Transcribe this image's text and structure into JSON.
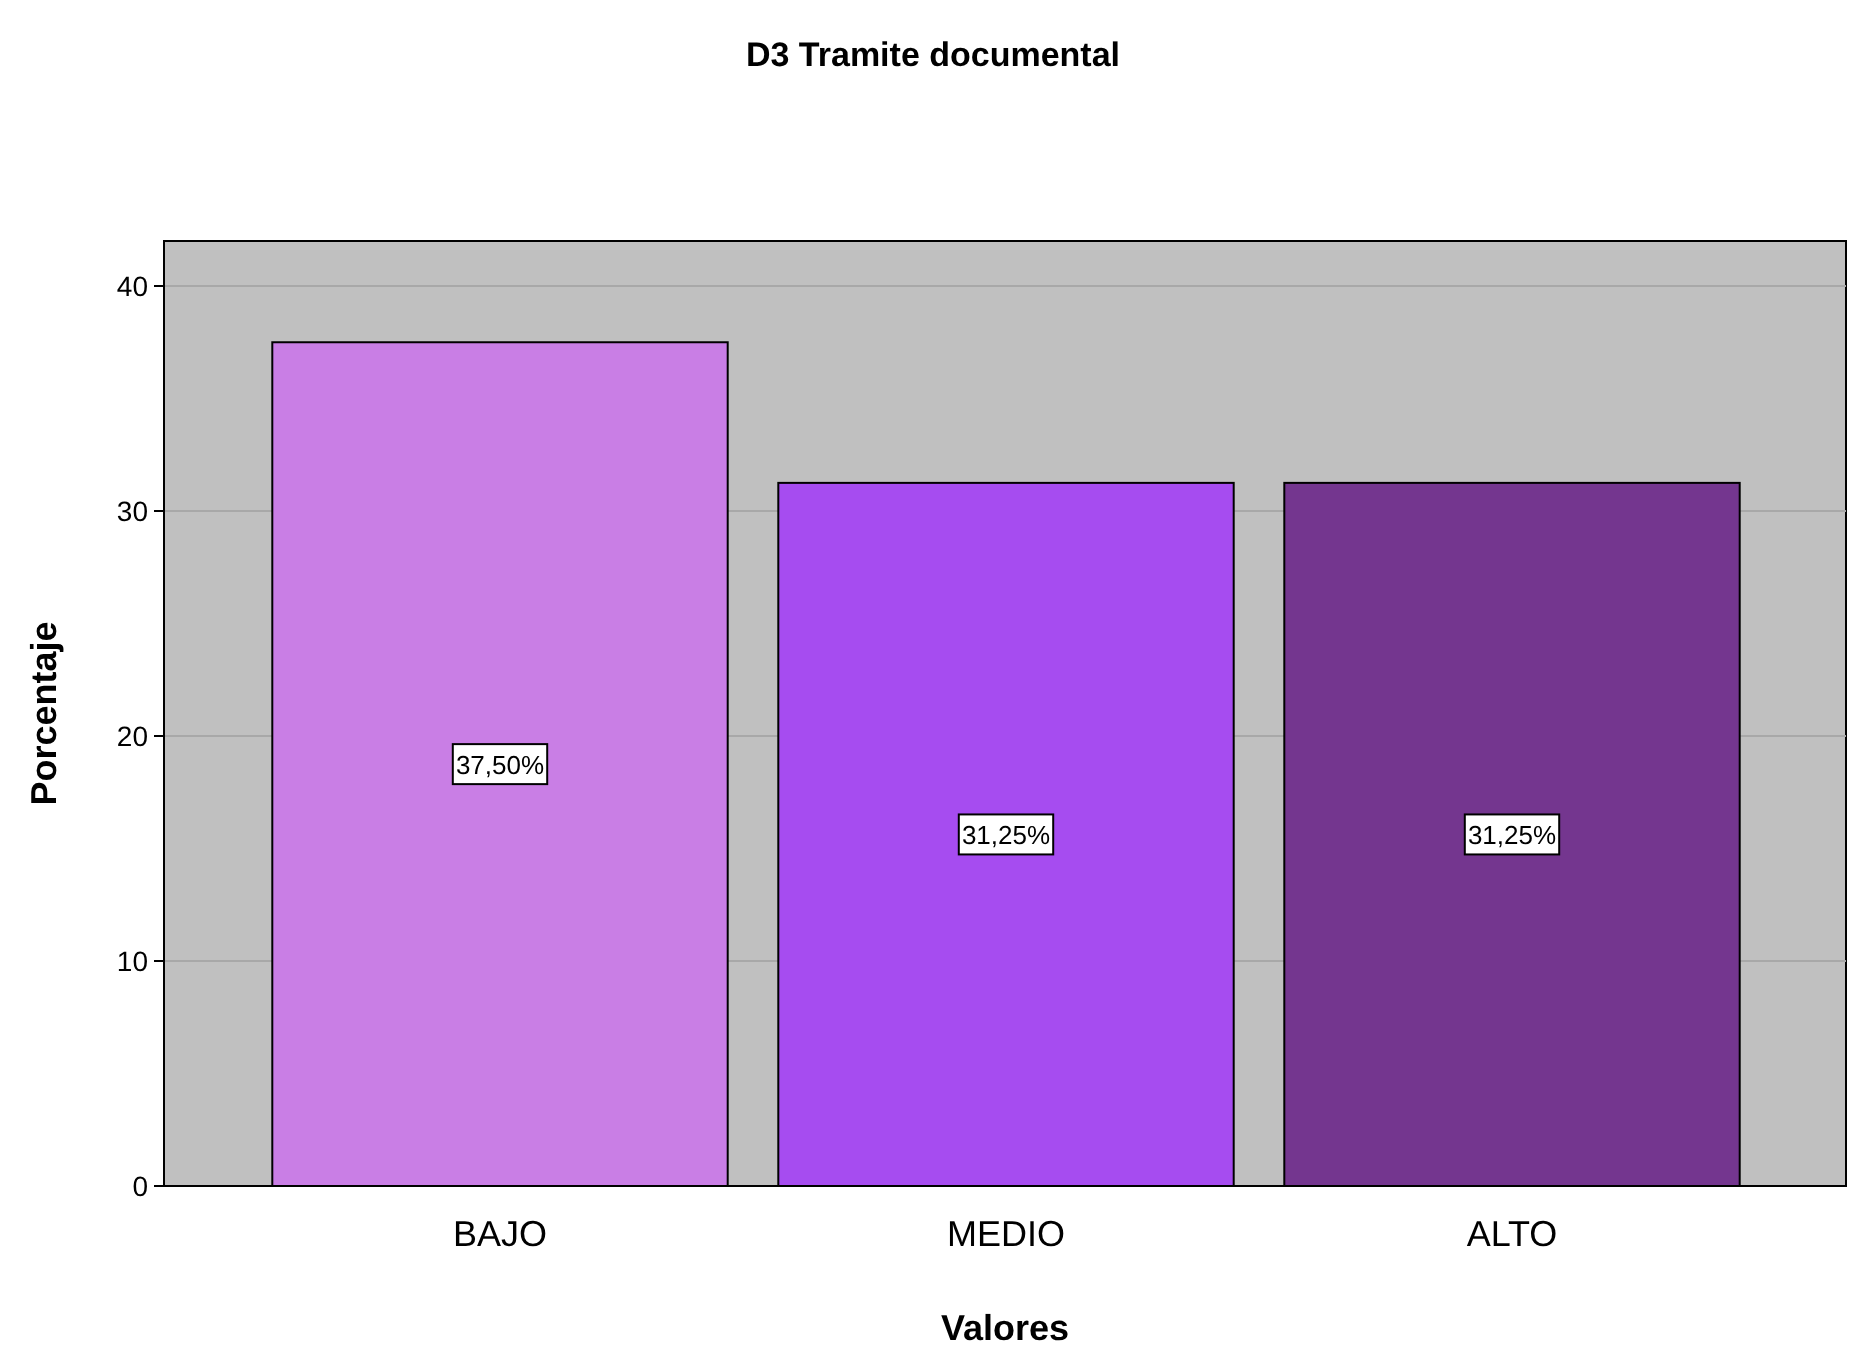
{
  "chart_data": {
    "type": "bar",
    "title": "D3 Tramite documental",
    "xlabel": "Valores",
    "ylabel": "Porcentaje",
    "categories": [
      "BAJO",
      "MEDIO",
      "ALTO"
    ],
    "values": [
      37.5,
      31.25,
      31.25
    ],
    "colors": [
      "#c97ee5",
      "#a64cf0",
      "#74368f"
    ],
    "value_labels": [
      "37,50%",
      "31,25%",
      "31,25%"
    ],
    "ylim": [
      0,
      42
    ],
    "yticks": [
      0,
      10,
      20,
      30,
      40
    ],
    "grid": "y"
  }
}
